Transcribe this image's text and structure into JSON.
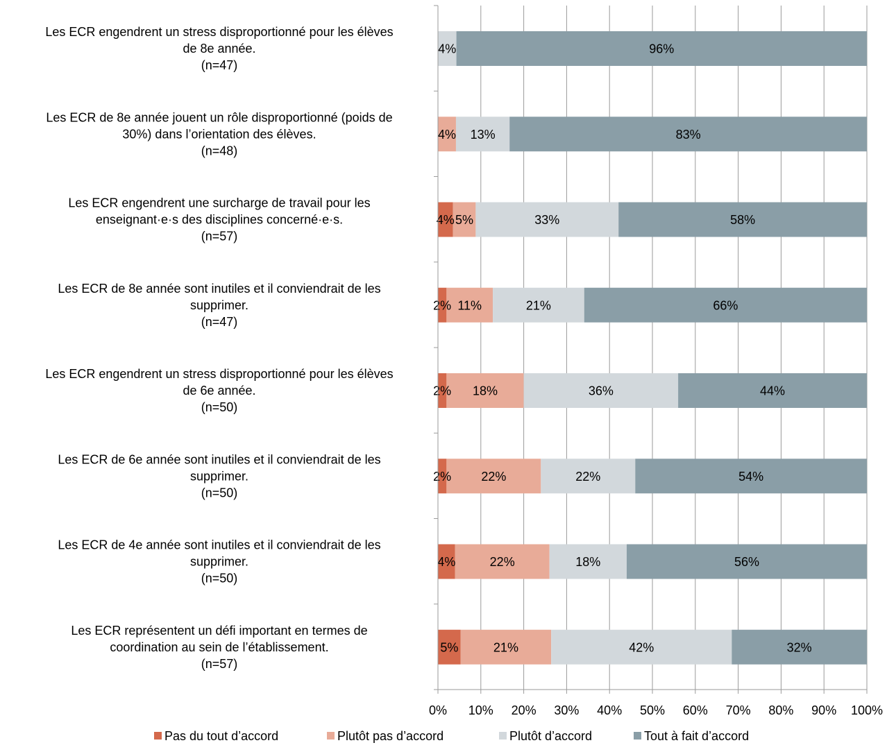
{
  "chart_data": {
    "type": "bar",
    "orientation": "horizontal",
    "stacked": true,
    "grid": true,
    "legend_position": "bottom",
    "xlim": [
      0,
      100
    ],
    "x_ticks": [
      "0%",
      "10%",
      "20%",
      "30%",
      "40%",
      "50%",
      "60%",
      "70%",
      "80%",
      "90%",
      "100%"
    ],
    "categories": [
      [
        "Les ECR engendrent un stress disproportionné pour les élèves",
        "de 8e année.",
        "(n=47)"
      ],
      [
        "Les ECR de 8e année jouent un rôle disproportionné (poids de",
        "30%) dans l’orientation des élèves.",
        "(n=48)"
      ],
      [
        "Les ECR engendrent une surcharge de travail pour les",
        "enseignant·e·s des disciplines concerné·e·s.",
        "(n=57)"
      ],
      [
        "Les ECR de 8e année sont inutiles et il conviendrait de les",
        "supprimer.",
        "(n=47)"
      ],
      [
        "Les ECR engendrent un stress disproportionné pour les élèves",
        "de 6e année.",
        "(n=50)"
      ],
      [
        "Les ECR de 6e année sont inutiles et il conviendrait de les",
        "supprimer.",
        "(n=50)"
      ],
      [
        "Les ECR de 4e année sont inutiles et il conviendrait de les",
        "supprimer.",
        "(n=50)"
      ],
      [
        "Les ECR représentent un défi important en termes de",
        "coordination au sein de l’établissement.",
        "(n=57)"
      ]
    ],
    "series": [
      {
        "name": "Pas du tout d’accord",
        "color": "#d4694c",
        "values": [
          0,
          0,
          3.5,
          2,
          2,
          2,
          4,
          5.3
        ],
        "labels": [
          "",
          "",
          "4%",
          "2%",
          "2%",
          "2%",
          "4%",
          "5%"
        ]
      },
      {
        "name": "Plutôt pas d’accord",
        "color": "#e8ab98",
        "values": [
          0,
          4.2,
          5.3,
          10.8,
          18,
          22,
          22,
          21.1
        ],
        "labels": [
          "",
          "4%",
          "5%",
          "11%",
          "18%",
          "22%",
          "22%",
          "21%"
        ]
      },
      {
        "name": "Plutôt d’accord",
        "color": "#d2d8dc",
        "values": [
          4.3,
          12.5,
          33.3,
          21.3,
          36,
          22,
          18,
          42.1
        ],
        "labels": [
          "4%",
          "13%",
          "33%",
          "21%",
          "36%",
          "22%",
          "18%",
          "42%"
        ]
      },
      {
        "name": "Tout à fait d’accord",
        "color": "#8a9ea7",
        "values": [
          95.7,
          83.3,
          57.9,
          65.9,
          44,
          54,
          56,
          31.5
        ],
        "labels": [
          "96%",
          "83%",
          "58%",
          "66%",
          "44%",
          "54%",
          "56%",
          "32%"
        ]
      }
    ]
  }
}
